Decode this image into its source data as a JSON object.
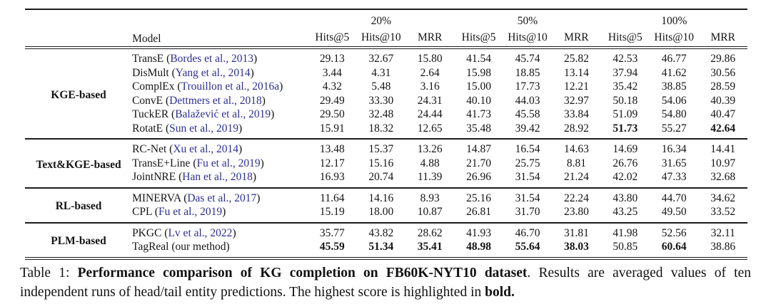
{
  "colors": {
    "citation": "#2d2f92",
    "rule": "#1c1c1c"
  },
  "table": {
    "header": {
      "model_label": "Model",
      "groups": [
        {
          "label": "20%"
        },
        {
          "label": "50%"
        },
        {
          "label": "100%"
        }
      ],
      "metrics": [
        "Hits@5",
        "Hits@10",
        "MRR"
      ]
    },
    "sections": [
      {
        "category": "KGE-based",
        "rows": [
          {
            "model": "TransE",
            "cite": "Bordes et al., 2013",
            "values": [
              "29.13",
              "32.67",
              "15.80",
              "41.54",
              "45.74",
              "25.82",
              "42.53",
              "46.77",
              "29.86"
            ],
            "bold": []
          },
          {
            "model": "DisMult",
            "cite": "Yang et al., 2014",
            "values": [
              "3.44",
              "4.31",
              "2.64",
              "15.98",
              "18.85",
              "13.14",
              "37.94",
              "41.62",
              "30.56"
            ],
            "bold": []
          },
          {
            "model": "ComplEx",
            "cite": "Trouillon et al., 2016a",
            "values": [
              "4.32",
              "5.48",
              "3.16",
              "15.00",
              "17.73",
              "12.21",
              "35.42",
              "38.85",
              "28.59"
            ],
            "bold": []
          },
          {
            "model": "ConvE",
            "cite": "Dettmers et al., 2018",
            "values": [
              "29.49",
              "33.30",
              "24.31",
              "40.10",
              "44.03",
              "32.97",
              "50.18",
              "54.06",
              "40.39"
            ],
            "bold": []
          },
          {
            "model": "TuckER",
            "cite": "Balažević et al., 2019",
            "values": [
              "29.50",
              "32.48",
              "24.44",
              "41.73",
              "45.58",
              "33.84",
              "51.09",
              "54.80",
              "40.47"
            ],
            "bold": []
          },
          {
            "model": "RotatE",
            "cite": "Sun et al., 2019",
            "values": [
              "15.91",
              "18.32",
              "12.65",
              "35.48",
              "39.42",
              "28.92",
              "51.73",
              "55.27",
              "42.64"
            ],
            "bold": [
              6,
              8
            ]
          }
        ]
      },
      {
        "category": "Text&KGE-based",
        "rows": [
          {
            "model": "RC-Net",
            "cite": "Xu et al., 2014",
            "values": [
              "13.48",
              "15.37",
              "13.26",
              "14.87",
              "16.54",
              "14.63",
              "14.69",
              "16.34",
              "14.41"
            ],
            "bold": []
          },
          {
            "model": "TransE+Line",
            "cite": "Fu et al., 2019",
            "values": [
              "12.17",
              "15.16",
              "4.88",
              "21.70",
              "25.75",
              "8.81",
              "26.76",
              "31.65",
              "10.97"
            ],
            "bold": []
          },
          {
            "model": "JointNRE",
            "cite": "Han et al., 2018",
            "values": [
              "16.93",
              "20.74",
              "11.39",
              "26.96",
              "31.54",
              "21.24",
              "42.02",
              "47.33",
              "32.68"
            ],
            "bold": []
          }
        ]
      },
      {
        "category": "RL-based",
        "rows": [
          {
            "model": "MINERVA",
            "cite": "Das et al., 2017",
            "values": [
              "11.64",
              "14.16",
              "8.93",
              "25.16",
              "31.54",
              "22.24",
              "43.80",
              "44.70",
              "34.62"
            ],
            "bold": []
          },
          {
            "model": "CPL",
            "cite": "Fu et al., 2019",
            "values": [
              "15.19",
              "18.00",
              "10.87",
              "26.81",
              "31.70",
              "23.80",
              "43.25",
              "49.50",
              "33.52"
            ],
            "bold": []
          }
        ]
      },
      {
        "category": "PLM-based",
        "rows": [
          {
            "model": "PKGC",
            "cite": "Lv et al., 2022",
            "values": [
              "35.77",
              "43.82",
              "28.62",
              "41.93",
              "46.70",
              "31.81",
              "41.98",
              "52.56",
              "32.11"
            ],
            "bold": []
          },
          {
            "model": "TagReal",
            "note": "our method",
            "values": [
              "45.59",
              "51.34",
              "35.41",
              "48.98",
              "55.64",
              "38.03",
              "50.85",
              "60.64",
              "38.86"
            ],
            "bold": [
              0,
              1,
              2,
              3,
              4,
              5,
              7
            ]
          }
        ]
      }
    ]
  },
  "caption": {
    "segments": [
      {
        "text": "Table 1: ",
        "bold": false
      },
      {
        "text": "Performance comparison of KG completion on FB60K-NYT10 dataset",
        "bold": true
      },
      {
        "text": ". Results are averaged values of ten independent runs of head/tail entity predictions. The highest score is highlighted in ",
        "bold": false
      },
      {
        "text": "bold.",
        "bold": true
      }
    ]
  }
}
